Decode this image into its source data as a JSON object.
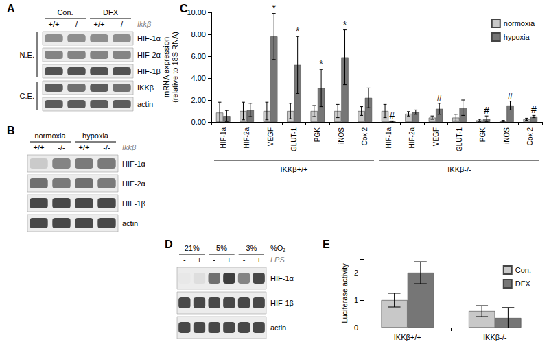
{
  "blots": [
    {
      "panel": "A",
      "column_groups": [
        "Con.",
        "DFX"
      ],
      "lanes": [
        "+/+",
        "-/-",
        "+/+",
        "-/-"
      ],
      "lane_title": "Ikkβ",
      "row_groups": [
        {
          "label": "N.E.",
          "rows": [
            {
              "label": "HIF-1α",
              "intensity": [
                0.45,
                0.45,
                0.45,
                0.45
              ]
            },
            {
              "label": "HIF-2α",
              "intensity": [
                0.5,
                0.5,
                0.5,
                0.5
              ]
            },
            {
              "label": "HIF-1β",
              "intensity": [
                0.75,
                0.75,
                0.75,
                0.75
              ]
            }
          ]
        },
        {
          "label": "C.E.",
          "rows": [
            {
              "label": "IKKβ",
              "intensity": [
                0.7,
                0.6,
                0.7,
                0.6
              ]
            },
            {
              "label": "actin",
              "intensity": [
                0.7,
                0.7,
                0.7,
                0.7
              ]
            }
          ]
        }
      ]
    },
    {
      "panel": "B",
      "column_groups": [
        "normoxia",
        "hypoxia"
      ],
      "lanes": [
        "+/+",
        "-/-",
        "+/+",
        "-/-"
      ],
      "lane_title": "Ikkβ",
      "rows": [
        {
          "label": "HIF-1α",
          "intensity": [
            0.15,
            0.5,
            0.55,
            0.55
          ]
        },
        {
          "label": "HIF-2α",
          "intensity": [
            0.6,
            0.55,
            0.6,
            0.55
          ]
        },
        {
          "label": "HIF-1β",
          "intensity": [
            0.8,
            0.8,
            0.8,
            0.8
          ]
        },
        {
          "label": "actin",
          "intensity": [
            0.8,
            0.8,
            0.8,
            0.8
          ]
        }
      ]
    },
    {
      "panel": "D",
      "column_groups": [
        "21%",
        "5%",
        "3%"
      ],
      "column_title": "%O₂",
      "lanes": [
        "-",
        "+",
        "-",
        "+",
        "-",
        "+"
      ],
      "lane_title": "LPS",
      "rows": [
        {
          "label": "HIF-1α",
          "intensity": [
            0,
            0.05,
            0.6,
            0.85,
            0.5,
            0.8
          ]
        },
        {
          "label": "HIF-1β",
          "intensity": [
            0.8,
            0.8,
            0.8,
            0.8,
            0.8,
            0.8
          ]
        },
        {
          "label": "actin",
          "intensity": [
            0.8,
            0.8,
            0.8,
            0.8,
            0.8,
            0.8
          ]
        }
      ]
    }
  ],
  "chart_data": [
    {
      "panel": "C",
      "type": "bar",
      "y_label": "mRNA expression\n(relative to 18S RNA)",
      "categories": [
        "HIF-1a",
        "HIF-2a",
        "VEGF",
        "GLUT-1",
        "PGK",
        "iNOS",
        "Cox 2",
        "HIF-1a",
        "HIF-2a",
        "VEGF",
        "GLUT-1",
        "PGK",
        "iNOS",
        "Cox 2"
      ],
      "groups": [
        "IKKβ+/+",
        "IKKβ-/-"
      ],
      "series": [
        {
          "name": "normoxia",
          "color": "#c8c8c8",
          "values": [
            0.85,
            1.0,
            1.0,
            1.0,
            1.0,
            1.0,
            1.0,
            1.0,
            0.75,
            0.4,
            0.4,
            0.15,
            0.1,
            0.25
          ],
          "errors": [
            0.95,
            0.8,
            0.8,
            0.7,
            0.5,
            0.6,
            0.4,
            0.6,
            0.2,
            0.15,
            0.3,
            0.1,
            0.05,
            0.1
          ]
        },
        {
          "name": "hypoxia",
          "color": "#767676",
          "values": [
            0.55,
            1.1,
            7.8,
            5.2,
            3.1,
            5.9,
            2.2,
            0.05,
            0.9,
            1.2,
            1.3,
            0.3,
            1.5,
            0.5
          ],
          "errors": [
            0.5,
            0.6,
            2.1,
            2.6,
            1.7,
            2.5,
            0.9,
            0.05,
            0.2,
            0.5,
            0.7,
            0.25,
            0.4,
            0.1
          ],
          "annotations": [
            null,
            null,
            "*",
            "*",
            "*",
            "*",
            null,
            "#",
            null,
            "#",
            null,
            "#",
            "#",
            "#"
          ]
        }
      ],
      "ylim": [
        0,
        10
      ],
      "yticks": [
        {
          "value": 0,
          "label": "0.00"
        },
        {
          "value": 2,
          "label": "2.00"
        },
        {
          "value": 4,
          "label": "4.00"
        },
        {
          "value": 6,
          "label": "6.00"
        },
        {
          "value": 8,
          "label": "8.00"
        },
        {
          "value": 10,
          "label": "10.00"
        }
      ],
      "grid": false,
      "legend": "top-right"
    },
    {
      "panel": "E",
      "type": "bar",
      "y_label": "Luciferase activity",
      "categories": [
        "IKKβ+/+",
        "IKKβ-/-"
      ],
      "series": [
        {
          "name": "Con.",
          "color": "#c8c8c8",
          "values": [
            1.0,
            0.6
          ],
          "errors": [
            0.25,
            0.2
          ]
        },
        {
          "name": "DFX",
          "color": "#767676",
          "values": [
            2.0,
            0.35
          ],
          "errors": [
            0.4,
            0.38
          ]
        }
      ],
      "ylim": [
        0,
        2.5
      ],
      "yticks": [
        0,
        1,
        2
      ],
      "grid": false,
      "legend": "top-right"
    }
  ]
}
